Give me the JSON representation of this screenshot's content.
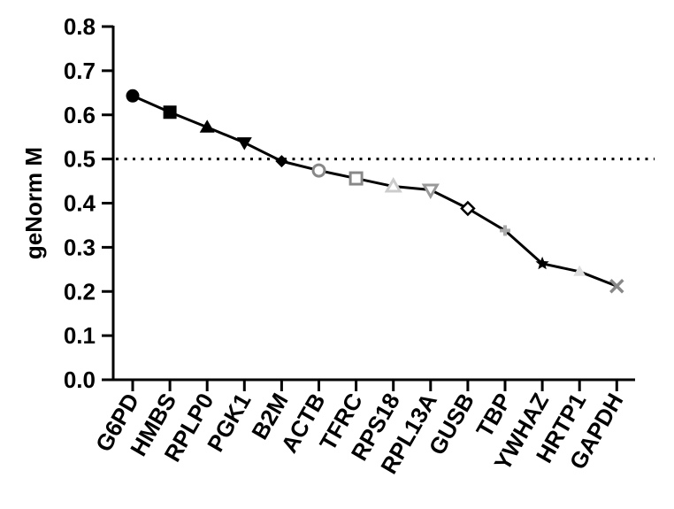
{
  "chart_data": {
    "type": "line",
    "ylabel": "geNorm M",
    "ylim": [
      0,
      0.8
    ],
    "yticks": [
      "0.0",
      "0.1",
      "0.2",
      "0.3",
      "0.4",
      "0.5",
      "0.6",
      "0.7",
      "0.8"
    ],
    "categories": [
      "G6PD",
      "HMBS",
      "RPLP0",
      "PGK1",
      "B2M",
      "ACTB",
      "TFRC",
      "RPS18",
      "RPL13A",
      "GUSB",
      "TBP",
      "YWHAZ",
      "HRTP1",
      "GAPDH"
    ],
    "values": [
      0.643,
      0.606,
      0.572,
      0.537,
      0.495,
      0.474,
      0.456,
      0.438,
      0.43,
      0.388,
      0.338,
      0.263,
      0.245,
      0.212
    ],
    "markers": [
      "filled-circle",
      "filled-square",
      "filled-triangle-up",
      "filled-triangle-down",
      "filled-diamond",
      "open-circle",
      "open-square",
      "open-triangle-up",
      "open-triangle-down",
      "open-diamond",
      "cross",
      "star",
      "triangle",
      "x"
    ],
    "marker_colors": [
      "#000000",
      "#000000",
      "#000000",
      "#000000",
      "#000000",
      "#888888",
      "#888888",
      "#cccccc",
      "#999999",
      "#000000",
      "#aaaaaa",
      "#000000",
      "#dddddd",
      "#888888"
    ],
    "line_color": "#000000",
    "threshold": 0.5,
    "threshold_style": "dotted",
    "grid": false
  }
}
